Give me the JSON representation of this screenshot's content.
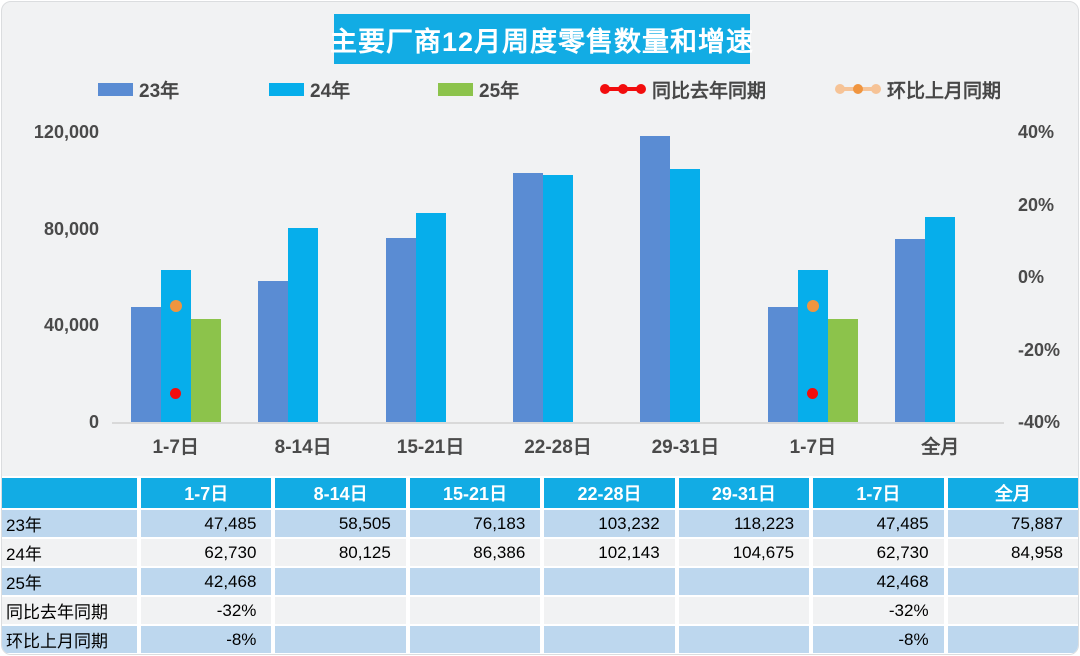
{
  "colors": {
    "background": "#f1f2f3",
    "accent_cyan": "#12ace4",
    "bar_23": "#5a8cd3",
    "bar_24": "#06aeeb",
    "bar_25": "#8cc34b",
    "yoy_red": "#f20d0d",
    "mom_orange": "#f0953f",
    "mom_orange_light": "#f6c396",
    "row_blue": "#bdd7ee",
    "row_gray": "#f1f2f3",
    "axis_text": "#4a4a4a",
    "baseline": "#d9d9d9"
  },
  "chart_data": {
    "type": "bar",
    "title": "主要厂商12月周度零售数量和增速",
    "legend_position": "top",
    "grid": false,
    "categories": [
      "1-7日",
      "8-14日",
      "15-21日",
      "22-28日",
      "29-31日",
      "1-7日",
      "全月"
    ],
    "series": [
      {
        "name": "23年",
        "type": "bar",
        "axis": "left",
        "color_key": "bar_23",
        "values": [
          47485,
          58505,
          76183,
          103232,
          118223,
          47485,
          75887
        ]
      },
      {
        "name": "24年",
        "type": "bar",
        "axis": "left",
        "color_key": "bar_24",
        "values": [
          62730,
          80125,
          86386,
          102143,
          104675,
          62730,
          84958
        ]
      },
      {
        "name": "25年",
        "type": "bar",
        "axis": "left",
        "color_key": "bar_25",
        "values": [
          42468,
          null,
          null,
          null,
          null,
          42468,
          null
        ]
      },
      {
        "name": "同比去年同期",
        "type": "point",
        "axis": "right",
        "color_key": "yoy_red",
        "values": [
          -32,
          null,
          null,
          null,
          null,
          -32,
          null
        ]
      },
      {
        "name": "环比上月同期",
        "type": "point",
        "axis": "right",
        "color_key": "mom_orange",
        "values": [
          -8,
          null,
          null,
          null,
          null,
          -8,
          null
        ]
      }
    ],
    "left_axis": {
      "min": 0,
      "max": 120000,
      "ticks": [
        0,
        40000,
        80000,
        120000
      ],
      "labels": [
        "0",
        "40,000",
        "80,000",
        "120,000"
      ]
    },
    "right_axis": {
      "min": -40,
      "max": 40,
      "ticks": [
        -40,
        -20,
        0,
        20,
        40
      ],
      "labels": [
        "-40%",
        "-20%",
        "0%",
        "20%",
        "40%"
      ]
    }
  },
  "table": {
    "columns": [
      "",
      "1-7日",
      "8-14日",
      "15-21日",
      "22-28日",
      "29-31日",
      "1-7日",
      "全月"
    ],
    "rows": [
      {
        "label": "23年",
        "cells": [
          "47,485",
          "58,505",
          "76,183",
          "103,232",
          "118,223",
          "47,485",
          "75,887"
        ]
      },
      {
        "label": "24年",
        "cells": [
          "62,730",
          "80,125",
          "86,386",
          "102,143",
          "104,675",
          "62,730",
          "84,958"
        ]
      },
      {
        "label": "25年",
        "cells": [
          "42,468",
          "",
          "",
          "",
          "",
          "42,468",
          ""
        ]
      },
      {
        "label": "同比去年同期",
        "cells": [
          "-32%",
          "",
          "",
          "",
          "",
          "-32%",
          ""
        ]
      },
      {
        "label": "环比上月同期",
        "cells": [
          "-8%",
          "",
          "",
          "",
          "",
          "-8%",
          ""
        ]
      }
    ]
  }
}
